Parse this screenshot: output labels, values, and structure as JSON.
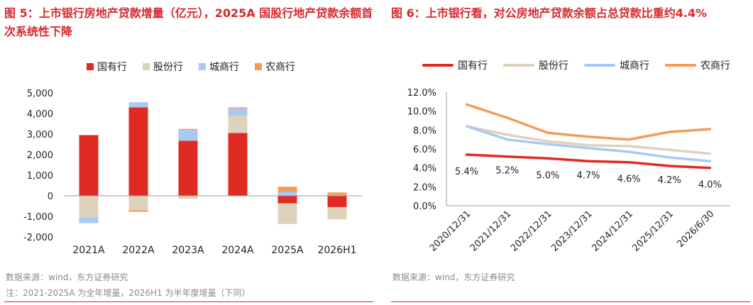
{
  "left": {
    "title": "图 5：上市银行房地产贷款增量（亿元），2025A 国股行地产贷款余额首次系统性下降",
    "source": "数据来源：wind，东方证券研究",
    "note": "注：2021-2025A 为全年增量，2026H1 为半年度增量（下同）"
  },
  "right": {
    "title": "图 6：上市银行看，对公房地产贷款余额占总贷款比重约4.4%",
    "source": "数据来源：wind，东方证券研究"
  },
  "colors": {
    "red": "#e02b22",
    "beige": "#dfd2bd",
    "blue": "#a9c9f4",
    "orange": "#f59b58",
    "title": "#d8262c"
  },
  "chart_data": [
    {
      "type": "bar",
      "stacked": true,
      "categories": [
        "2021A",
        "2022A",
        "2023A",
        "2024A",
        "2025A",
        "2026H1"
      ],
      "series": [
        {
          "name": "国有行",
          "color": "#e02b22",
          "values": [
            2950,
            4300,
            2680,
            3050,
            -370,
            -550
          ]
        },
        {
          "name": "股份行",
          "color": "#dfd2bd",
          "values": [
            -1050,
            -700,
            -150,
            850,
            -1000,
            -600
          ]
        },
        {
          "name": "城商行",
          "color": "#a9c9f4",
          "values": [
            -280,
            250,
            520,
            350,
            190,
            40
          ]
        },
        {
          "name": "农商行",
          "color": "#f59b58",
          "values": [
            0,
            -80,
            50,
            50,
            250,
            120
          ]
        }
      ],
      "yticks": [
        "5,000",
        "4,000",
        "3,000",
        "2,000",
        "1,000",
        "0",
        "-1,000",
        "-2,000"
      ],
      "ylim": [
        -2000,
        5000
      ],
      "legend_position": "top"
    },
    {
      "type": "line",
      "categories": [
        "2020/12/31",
        "2021/12/31",
        "2022/12/31",
        "2023/12/31",
        "2024/12/31",
        "2025/12/31",
        "2026/6/30"
      ],
      "series": [
        {
          "name": "国有行",
          "color": "#e02b22",
          "values": [
            5.4,
            5.2,
            5.0,
            4.7,
            4.6,
            4.2,
            4.0
          ]
        },
        {
          "name": "股份行",
          "color": "#dfd2bd",
          "values": [
            8.4,
            7.5,
            6.8,
            6.4,
            6.3,
            5.9,
            5.5
          ]
        },
        {
          "name": "城商行",
          "color": "#a9c9f4",
          "values": [
            8.4,
            7.0,
            6.5,
            6.1,
            5.7,
            5.1,
            4.7
          ]
        },
        {
          "name": "农商行",
          "color": "#f59b58",
          "values": [
            10.7,
            9.3,
            7.7,
            7.3,
            7.0,
            7.8,
            8.1
          ]
        }
      ],
      "data_labels": [
        "5.4%",
        "5.2%",
        "5.0%",
        "4.7%",
        "4.6%",
        "4.2%",
        "4.0%"
      ],
      "yticks": [
        "12.0%",
        "10.0%",
        "8.0%",
        "6.0%",
        "4.0%",
        "2.0%",
        "0.0%"
      ],
      "ylim": [
        0,
        12
      ],
      "legend_position": "top"
    }
  ]
}
